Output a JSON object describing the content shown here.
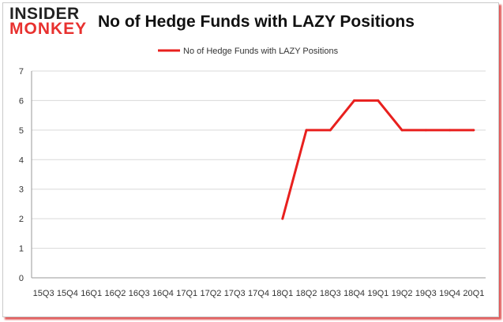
{
  "brand": {
    "line1": "INSIDER",
    "line2": "MONKEY"
  },
  "chart_data": {
    "type": "line",
    "title": "No of Hedge Funds with LAZY Positions",
    "xlabel": "",
    "ylabel": "",
    "categories": [
      "15Q3",
      "15Q4",
      "16Q1",
      "16Q2",
      "16Q3",
      "16Q4",
      "17Q1",
      "17Q2",
      "17Q3",
      "17Q4",
      "18Q1",
      "18Q2",
      "18Q3",
      "18Q4",
      "19Q1",
      "19Q2",
      "19Q3",
      "19Q4",
      "20Q1"
    ],
    "series": [
      {
        "name": "No of Hedge Funds with LAZY Positions",
        "values": [
          null,
          null,
          null,
          null,
          null,
          null,
          null,
          null,
          null,
          null,
          2,
          5,
          5,
          6,
          6,
          5,
          5,
          5,
          5
        ]
      }
    ],
    "ylim": [
      0,
      7
    ],
    "yticks": [
      0,
      1,
      2,
      3,
      4,
      5,
      6,
      7
    ],
    "grid": true,
    "legend": "top-center",
    "series_color": "#e8201e"
  }
}
